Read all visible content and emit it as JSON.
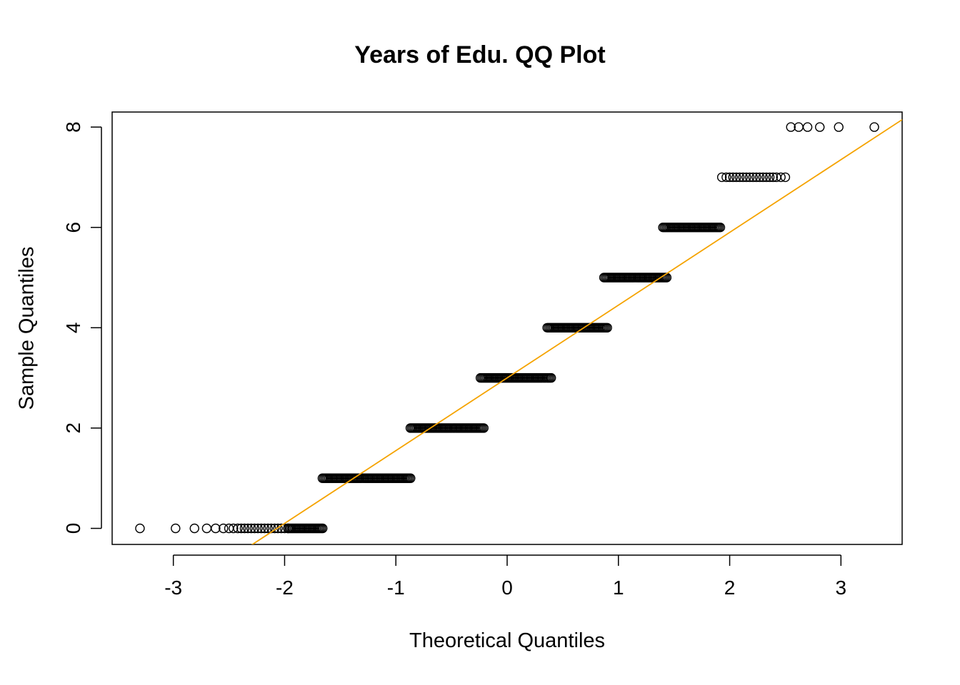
{
  "chart_data": {
    "type": "scatter",
    "title": "Years of Edu. QQ Plot",
    "xlabel": "Theoretical Quantiles",
    "ylabel": "Sample Quantiles",
    "xlim": [
      -3.55,
      3.55
    ],
    "ylim": [
      -0.32,
      8.3
    ],
    "x_ticks": [
      -3,
      -2,
      -1,
      0,
      1,
      2,
      3
    ],
    "y_ticks": [
      0,
      2,
      4,
      6,
      8
    ],
    "grid": false,
    "point_style": "open-circle",
    "series": [
      {
        "points": [
          {
            "x": -3.3,
            "y": 0
          },
          {
            "x": -2.98,
            "y": 0
          },
          {
            "x": -2.81,
            "y": 0
          },
          {
            "x": -2.7,
            "y": 0
          },
          {
            "x": -2.62,
            "y": 0
          },
          {
            "x": -2.55,
            "y": 0
          },
          {
            "x": -2.5,
            "y": 0
          },
          {
            "x": -2.46,
            "y": 0
          },
          {
            "x": -2.42,
            "y": 0
          },
          {
            "x": -2.39,
            "y": 0
          },
          {
            "x": -2.36,
            "y": 0
          },
          {
            "x": -2.33,
            "y": 0
          },
          {
            "x": -2.3,
            "y": 0
          },
          {
            "x": -2.27,
            "y": 0
          },
          {
            "x": -2.24,
            "y": 0
          },
          {
            "x": -2.21,
            "y": 0
          },
          {
            "x": -2.18,
            "y": 0
          },
          {
            "x": -2.15,
            "y": 0
          },
          {
            "x": -2.12,
            "y": 0
          },
          {
            "x": -2.09,
            "y": 0
          },
          {
            "x": -2.06,
            "y": 0
          },
          {
            "x": -2.03,
            "y": 0
          },
          {
            "x": -2.0,
            "y": 0
          },
          {
            "x": -1.97,
            "y": 0
          },
          {
            "x": 2.55,
            "y": 8
          },
          {
            "x": 2.62,
            "y": 8
          },
          {
            "x": 2.7,
            "y": 8
          },
          {
            "x": 2.81,
            "y": 8
          },
          {
            "x": 2.98,
            "y": 8
          },
          {
            "x": 3.3,
            "y": 8
          },
          {
            "x": 1.93,
            "y": 7
          },
          {
            "x": 1.97,
            "y": 7
          },
          {
            "x": 2.0,
            "y": 7
          },
          {
            "x": 2.03,
            "y": 7
          },
          {
            "x": 2.06,
            "y": 7
          },
          {
            "x": 2.09,
            "y": 7
          },
          {
            "x": 2.12,
            "y": 7
          },
          {
            "x": 2.15,
            "y": 7
          },
          {
            "x": 2.18,
            "y": 7
          },
          {
            "x": 2.21,
            "y": 7
          },
          {
            "x": 2.24,
            "y": 7
          },
          {
            "x": 2.27,
            "y": 7
          },
          {
            "x": 2.3,
            "y": 7
          },
          {
            "x": 2.33,
            "y": 7
          },
          {
            "x": 2.36,
            "y": 7
          },
          {
            "x": 2.39,
            "y": 7
          },
          {
            "x": 2.42,
            "y": 7
          },
          {
            "x": 2.46,
            "y": 7
          },
          {
            "x": 2.5,
            "y": 7
          }
        ],
        "dense_runs": [
          {
            "y": 0,
            "x_from": -1.97,
            "x_to": -1.65
          },
          {
            "y": 1,
            "x_from": -1.66,
            "x_to": -0.86
          },
          {
            "y": 2,
            "x_from": -0.87,
            "x_to": -0.2
          },
          {
            "y": 3,
            "x_from": -0.24,
            "x_to": 0.4
          },
          {
            "y": 4,
            "x_from": 0.36,
            "x_to": 0.9
          },
          {
            "y": 5,
            "x_from": 0.87,
            "x_to": 1.44
          },
          {
            "y": 6,
            "x_from": 1.4,
            "x_to": 1.92
          }
        ]
      }
    ],
    "reference_line": {
      "color": "#f5a300",
      "intercept": 3,
      "slope": 1.45
    }
  }
}
